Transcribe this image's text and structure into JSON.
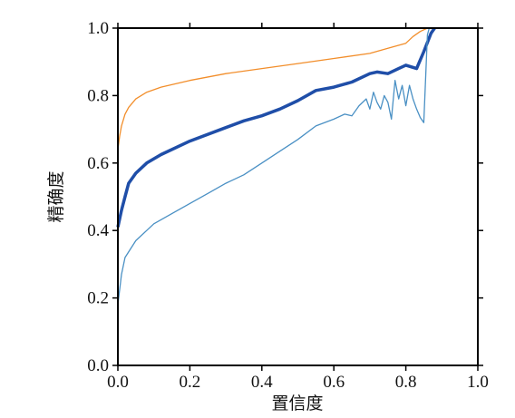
{
  "chart_data": {
    "type": "line",
    "xlabel": "置信度",
    "ylabel": "精确度",
    "xlim": [
      0.0,
      1.0
    ],
    "ylim": [
      0.0,
      1.0
    ],
    "x_ticks": [
      "0.0",
      "0.2",
      "0.4",
      "0.6",
      "0.8",
      "1.0"
    ],
    "y_ticks": [
      "0.0",
      "0.2",
      "0.4",
      "0.6",
      "0.8",
      "1.0"
    ],
    "grid": false,
    "legend": "none",
    "series": [
      {
        "color": "#f28e2b",
        "stroke_role": "thin",
        "points": [
          [
            0.0,
            0.64
          ],
          [
            0.005,
            0.68
          ],
          [
            0.01,
            0.71
          ],
          [
            0.02,
            0.745
          ],
          [
            0.03,
            0.765
          ],
          [
            0.05,
            0.79
          ],
          [
            0.08,
            0.81
          ],
          [
            0.12,
            0.825
          ],
          [
            0.2,
            0.845
          ],
          [
            0.3,
            0.865
          ],
          [
            0.4,
            0.88
          ],
          [
            0.5,
            0.895
          ],
          [
            0.6,
            0.91
          ],
          [
            0.7,
            0.925
          ],
          [
            0.75,
            0.94
          ],
          [
            0.8,
            0.955
          ],
          [
            0.82,
            0.975
          ],
          [
            0.84,
            0.99
          ],
          [
            0.86,
            1.0
          ]
        ]
      },
      {
        "color": "#1f4ea8",
        "stroke_role": "thick",
        "points": [
          [
            0.0,
            0.41
          ],
          [
            0.01,
            0.46
          ],
          [
            0.02,
            0.5
          ],
          [
            0.03,
            0.54
          ],
          [
            0.05,
            0.57
          ],
          [
            0.08,
            0.6
          ],
          [
            0.12,
            0.625
          ],
          [
            0.2,
            0.665
          ],
          [
            0.3,
            0.705
          ],
          [
            0.35,
            0.725
          ],
          [
            0.4,
            0.74
          ],
          [
            0.45,
            0.76
          ],
          [
            0.5,
            0.785
          ],
          [
            0.55,
            0.815
          ],
          [
            0.6,
            0.825
          ],
          [
            0.65,
            0.84
          ],
          [
            0.7,
            0.865
          ],
          [
            0.72,
            0.87
          ],
          [
            0.75,
            0.865
          ],
          [
            0.78,
            0.88
          ],
          [
            0.8,
            0.89
          ],
          [
            0.83,
            0.88
          ],
          [
            0.85,
            0.93
          ],
          [
            0.87,
            0.985
          ],
          [
            0.88,
            1.0
          ]
        ]
      },
      {
        "color": "#4a90c4",
        "stroke_role": "thin",
        "points": [
          [
            0.0,
            0.18
          ],
          [
            0.01,
            0.27
          ],
          [
            0.02,
            0.32
          ],
          [
            0.05,
            0.37
          ],
          [
            0.08,
            0.4
          ],
          [
            0.1,
            0.42
          ],
          [
            0.15,
            0.45
          ],
          [
            0.2,
            0.48
          ],
          [
            0.25,
            0.51
          ],
          [
            0.3,
            0.54
          ],
          [
            0.35,
            0.565
          ],
          [
            0.4,
            0.6
          ],
          [
            0.45,
            0.635
          ],
          [
            0.5,
            0.67
          ],
          [
            0.55,
            0.71
          ],
          [
            0.6,
            0.73
          ],
          [
            0.63,
            0.745
          ],
          [
            0.65,
            0.74
          ],
          [
            0.67,
            0.77
          ],
          [
            0.69,
            0.79
          ],
          [
            0.7,
            0.76
          ],
          [
            0.71,
            0.81
          ],
          [
            0.72,
            0.78
          ],
          [
            0.73,
            0.76
          ],
          [
            0.74,
            0.8
          ],
          [
            0.75,
            0.78
          ],
          [
            0.76,
            0.73
          ],
          [
            0.77,
            0.845
          ],
          [
            0.78,
            0.79
          ],
          [
            0.79,
            0.83
          ],
          [
            0.8,
            0.77
          ],
          [
            0.81,
            0.83
          ],
          [
            0.82,
            0.79
          ],
          [
            0.83,
            0.76
          ],
          [
            0.84,
            0.735
          ],
          [
            0.85,
            0.72
          ],
          [
            0.86,
            0.98
          ],
          [
            0.865,
            1.0
          ]
        ]
      }
    ]
  }
}
